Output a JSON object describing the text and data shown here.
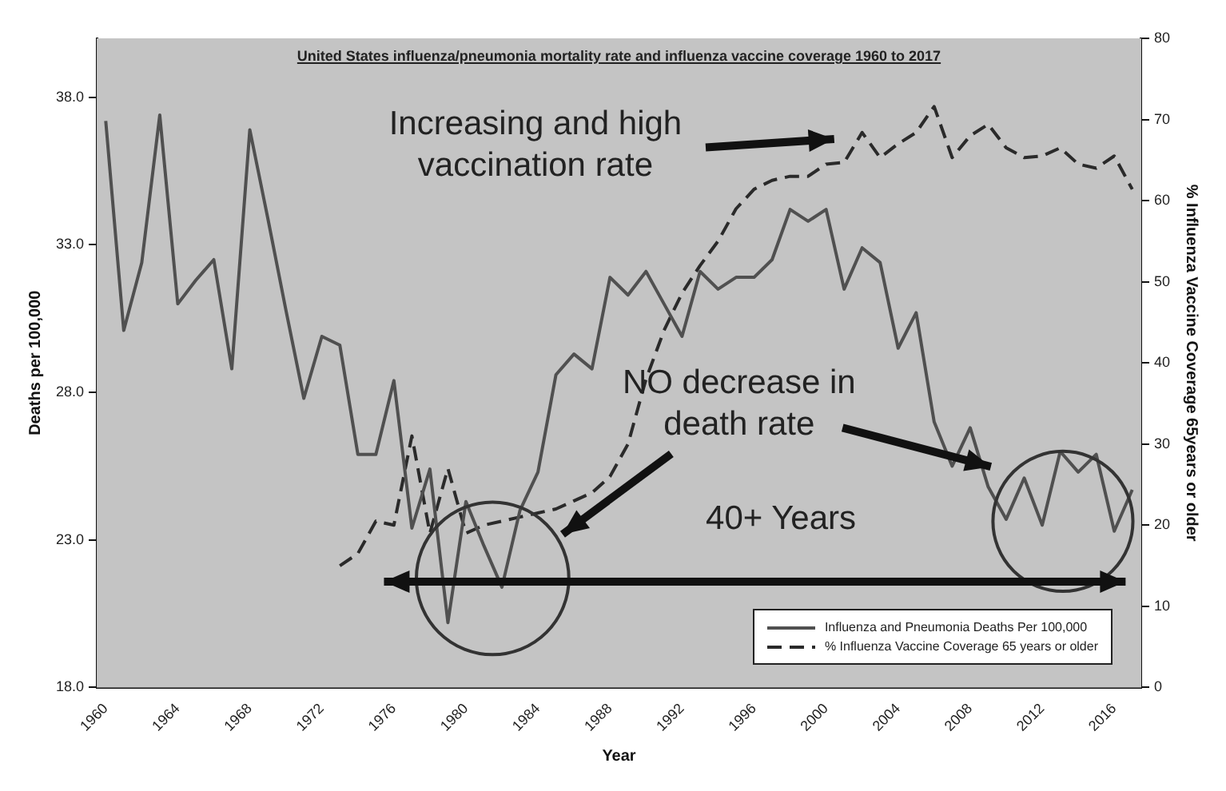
{
  "chart_data": {
    "type": "line",
    "title": "United States influenza/pneumonia mortality rate and influenza vaccine coverage 1960 to 2017",
    "xlabel": "Year",
    "ylabel": "Deaths per 100,000",
    "y2label": "% Influenza Vaccine Coverage 65years or older",
    "xlim": [
      1959.5,
      2017.5
    ],
    "xticks": [
      1960,
      1964,
      1968,
      1972,
      1976,
      1980,
      1984,
      1988,
      1992,
      1996,
      2000,
      2004,
      2008,
      2012,
      2016
    ],
    "ylim": [
      18,
      40
    ],
    "yticks": [
      {
        "value": 18,
        "label": "18.0"
      },
      {
        "value": 23,
        "label": "23.0"
      },
      {
        "value": 28,
        "label": "28.0"
      },
      {
        "value": 33,
        "label": "33.0"
      },
      {
        "value": 38,
        "label": "38.0"
      }
    ],
    "y2lim": [
      0,
      80
    ],
    "y2ticks": [
      0,
      10,
      20,
      30,
      40,
      50,
      60,
      70,
      80
    ],
    "series": [
      {
        "name": "Influenza and Pneumonia Deaths Per 100,000",
        "color": "#505050",
        "line_style": "solid",
        "x": [
          1960,
          1961,
          1962,
          1963,
          1964,
          1965,
          1966,
          1967,
          1968,
          1969,
          1970,
          1971,
          1972,
          1973,
          1974,
          1975,
          1976,
          1977,
          1978,
          1979,
          1980,
          1981,
          1982,
          1983,
          1984,
          1985,
          1986,
          1987,
          1988,
          1989,
          1990,
          1991,
          1992,
          1993,
          1994,
          1995,
          1996,
          1997,
          1998,
          1999,
          2000,
          2001,
          2002,
          2003,
          2004,
          2005,
          2006,
          2007,
          2008,
          2009,
          2010,
          2011,
          2012,
          2013,
          2014,
          2015,
          2016,
          2017
        ],
        "values": [
          37.2,
          30.1,
          32.4,
          37.4,
          31.0,
          31.8,
          32.5,
          28.8,
          36.9,
          33.9,
          30.8,
          27.8,
          29.9,
          29.6,
          25.9,
          25.9,
          28.4,
          23.4,
          25.4,
          20.2,
          24.3,
          22.8,
          21.4,
          24.0,
          25.3,
          28.6,
          29.3,
          28.8,
          31.9,
          31.3,
          32.1,
          31.0,
          29.9,
          32.1,
          31.5,
          31.9,
          31.9,
          32.5,
          34.2,
          33.8,
          34.2,
          31.5,
          32.9,
          32.4,
          29.5,
          30.7,
          27.0,
          25.5,
          26.8,
          24.8,
          23.7,
          25.1,
          23.5,
          26.0,
          25.3,
          25.9,
          23.3,
          24.7
        ]
      },
      {
        "name": "% Influenza Vaccine Coverage 65 years or older",
        "color": "#2a2a2a",
        "line_style": "dashed",
        "axis": "y2",
        "x": [
          1973,
          1974,
          1975,
          1976,
          1977,
          1978,
          1979,
          1980,
          1981,
          1982,
          1983,
          1984,
          1985,
          1986,
          1987,
          1988,
          1989,
          1990,
          1991,
          1992,
          1993,
          1994,
          1995,
          1996,
          1997,
          1998,
          1999,
          2000,
          2001,
          2002,
          2003,
          2004,
          2005,
          2006,
          2007,
          2008,
          2009,
          2010,
          2011,
          2012,
          2013,
          2014,
          2015,
          2016,
          2017
        ],
        "values": [
          15,
          16.5,
          20.5,
          20,
          31,
          19,
          27,
          19,
          20,
          20.5,
          21,
          21.5,
          22,
          23,
          24,
          26,
          30,
          38,
          44,
          48.6,
          52,
          55,
          59,
          61.4,
          62.5,
          63,
          63,
          64.5,
          64.7,
          68.4,
          65.3,
          67,
          68.4,
          71.6,
          65.3,
          68,
          69.4,
          66.5,
          65.3,
          65.5,
          66.5,
          64.5,
          64,
          65.5,
          61.4
        ]
      }
    ],
    "annotations": [
      "Increasing and high vaccination rate",
      "NO decrease in death rate",
      "40+ Years"
    ],
    "legend": "bottom right",
    "grid": false,
    "marker": "none"
  }
}
